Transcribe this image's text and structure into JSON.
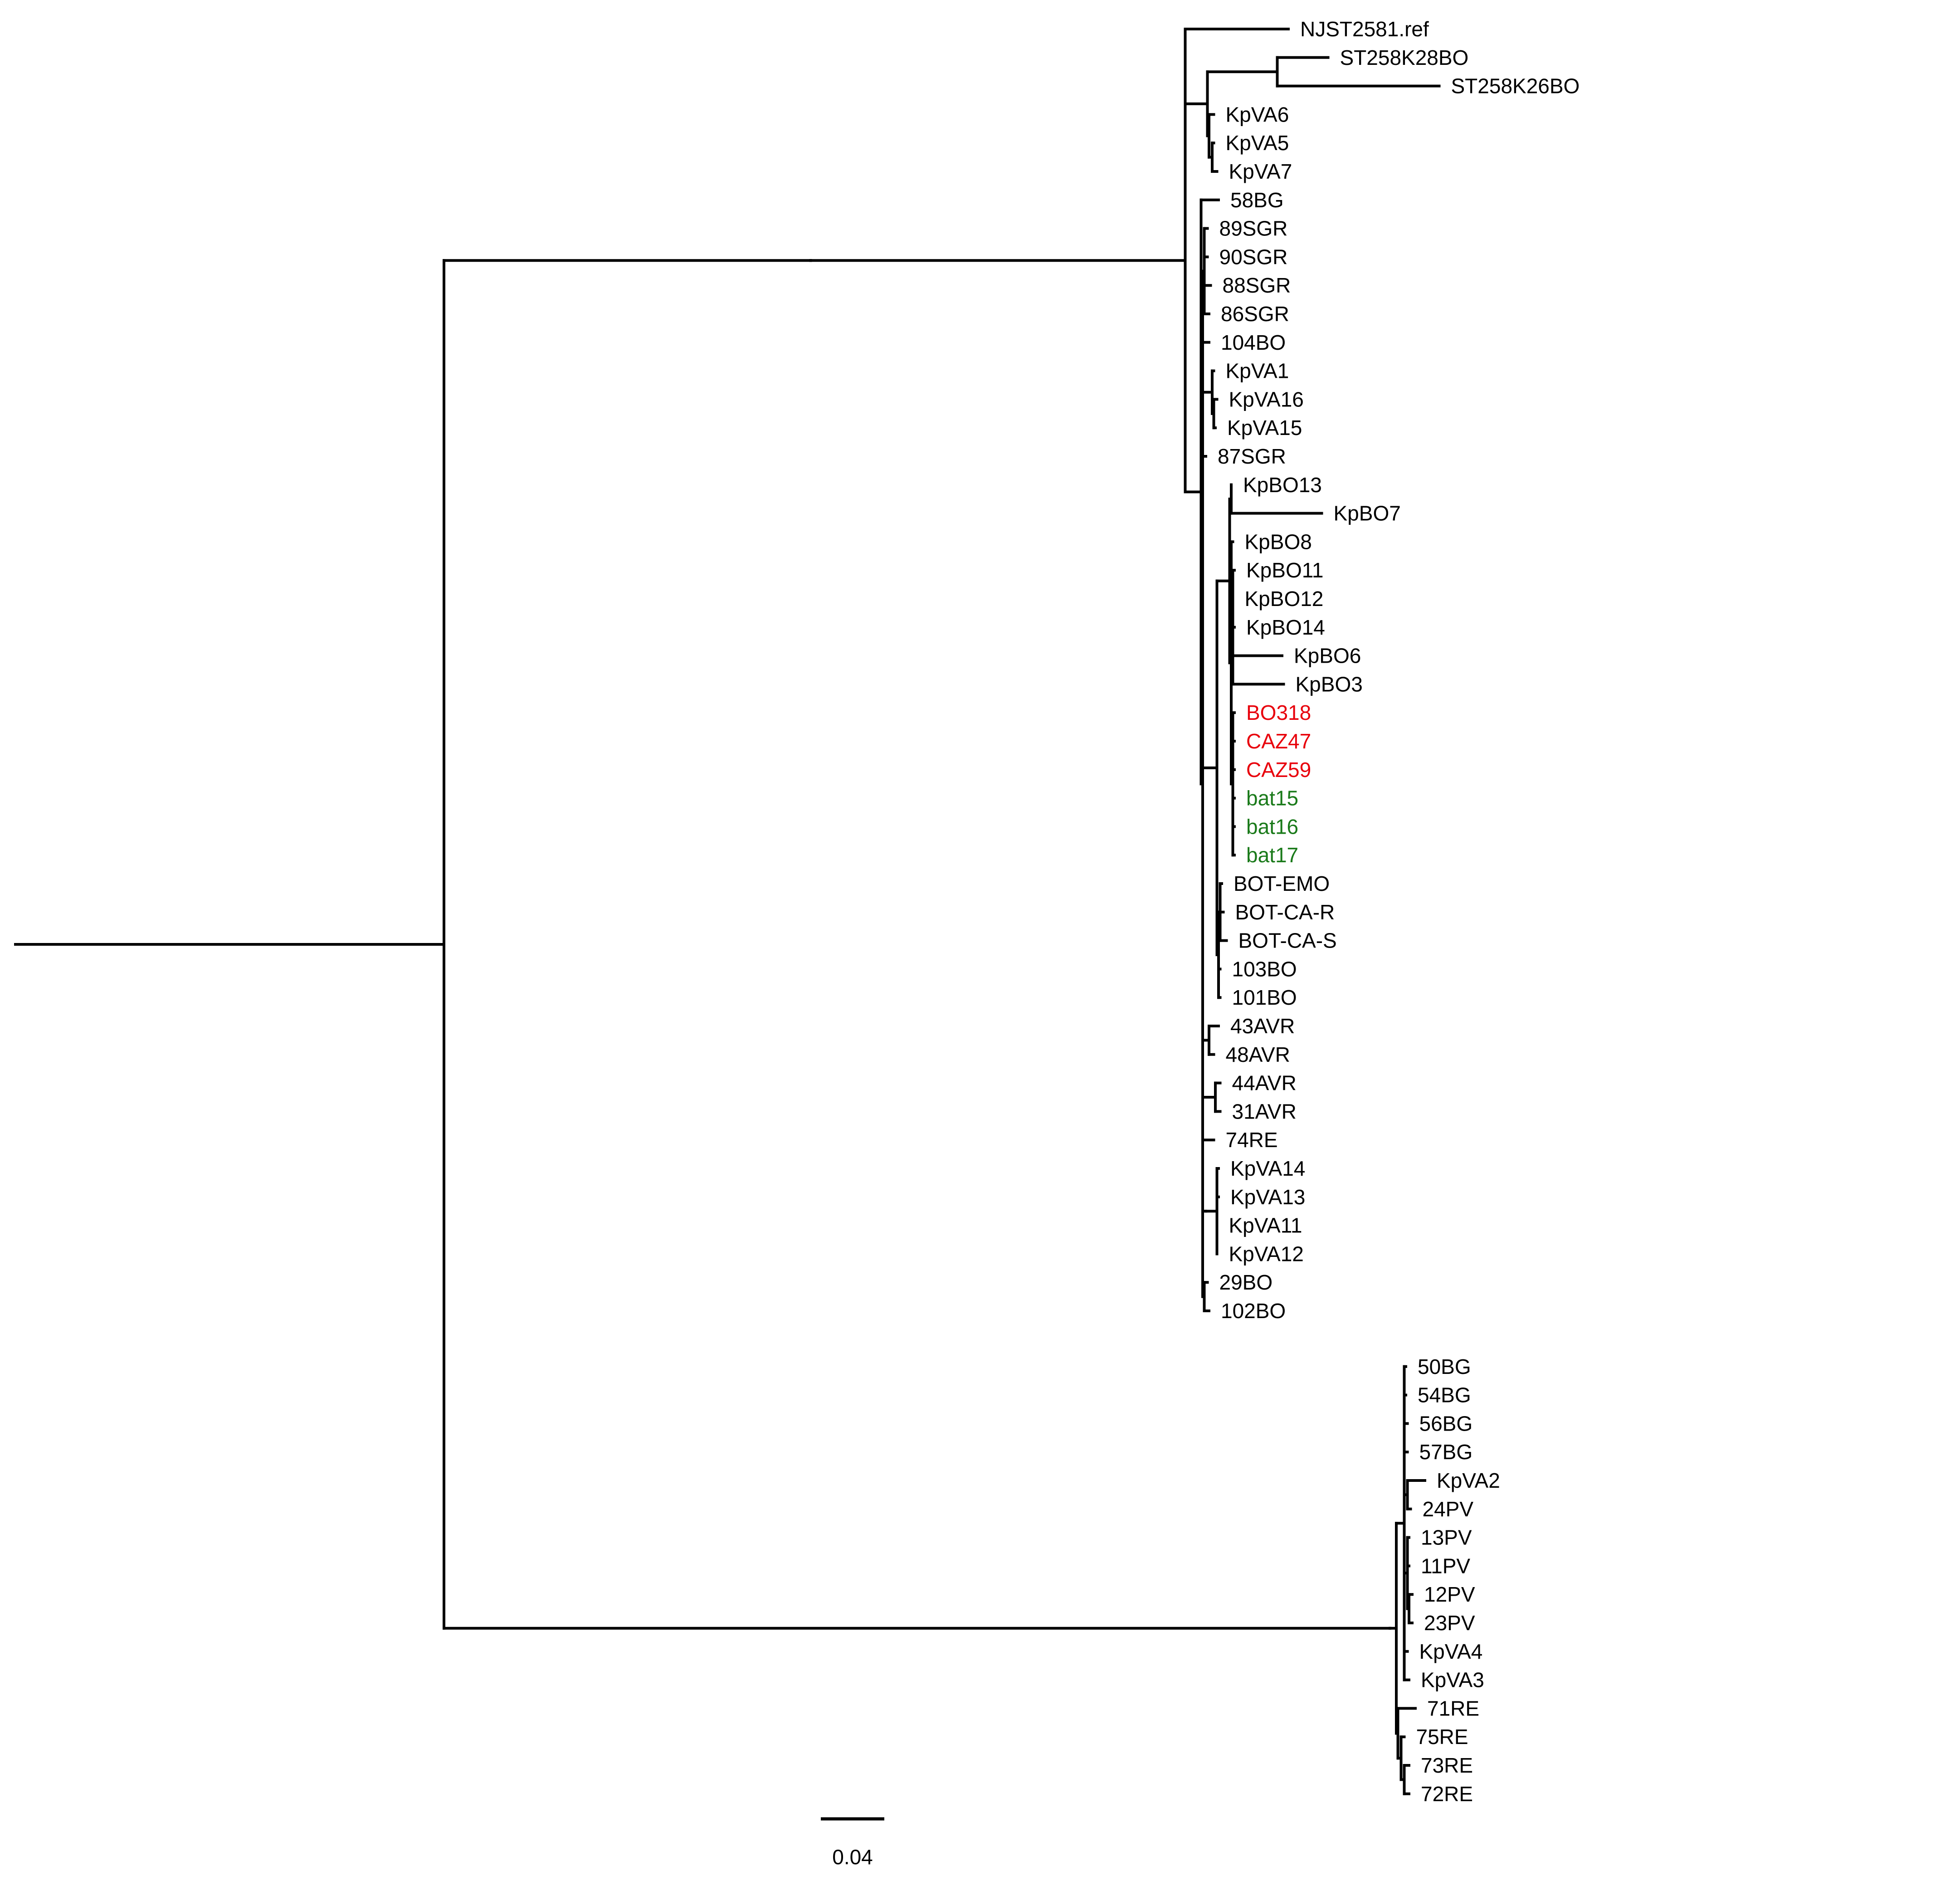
{
  "colors": {
    "branch": "#000000",
    "default_label": "#000000",
    "red": "#e8000b",
    "green": "#1a7a1a"
  },
  "scale_bar": {
    "length": 0.04,
    "label": "0.04"
  },
  "tree": {
    "name": "root",
    "len": 0,
    "children": [
      {
        "name": "",
        "len": 0.231,
        "children": [
          {
            "name": "",
            "len": 0.236,
            "children": [
              {
                "name": "NJST2581.ref",
                "len": 0.065
              },
              {
                "name": "",
                "len": 0.014,
                "children": [
                  {
                    "name": "",
                    "len": 0.044,
                    "children": [
                      {
                        "name": "ST258K28BO",
                        "len": 0.032
                      },
                      {
                        "name": "ST258K26BO",
                        "len": 0.102
                      }
                    ]
                  },
                  {
                    "name": "",
                    "len": 0.001,
                    "children": [
                      {
                        "name": "KpVA6",
                        "len": 0.003
                      },
                      {
                        "name": "",
                        "len": 0.002,
                        "children": [
                          {
                            "name": "KpVA5",
                            "len": 0.001
                          },
                          {
                            "name": "KpVA7",
                            "len": 0.003
                          }
                        ]
                      }
                    ]
                  }
                ]
              },
              {
                "name": "",
                "len": 0.01,
                "children": [
                  {
                    "name": "58BG",
                    "len": 0.011
                  },
                  {
                    "name": "",
                    "len": 0.001,
                    "children": [
                      {
                        "name": "",
                        "len": 0.001,
                        "children": [
                          {
                            "name": "89SGR",
                            "len": 0.002
                          },
                          {
                            "name": "90SGR",
                            "len": 0.002
                          },
                          {
                            "name": "88SGR",
                            "len": 0.004
                          },
                          {
                            "name": "86SGR",
                            "len": 0.003
                          }
                        ]
                      },
                      {
                        "name": "104BO",
                        "len": 0.004
                      },
                      {
                        "name": "",
                        "len": 0.006,
                        "children": [
                          {
                            "name": "KpVA1",
                            "len": 0.001
                          },
                          {
                            "name": "",
                            "len": 0.001,
                            "children": [
                              {
                                "name": "KpVA16",
                                "len": 0.002
                              },
                              {
                                "name": "KpVA15",
                                "len": 0.001
                              }
                            ]
                          }
                        ]
                      },
                      {
                        "name": "87SGR",
                        "len": 0.002
                      },
                      {
                        "name": "",
                        "len": 0.009,
                        "children": [
                          {
                            "name": "",
                            "len": 0.008,
                            "children": [
                              {
                                "name": "",
                                "len": 0.001,
                                "children": [
                                  {
                                    "name": "KpBO13",
                                    "len": 0.0
                                  },
                                  {
                                    "name": "KpBO7",
                                    "len": 0.057
                                  }
                                ]
                              },
                              {
                                "name": "",
                                "len": 0.001,
                                "children": [
                                  {
                                    "name": "KpBO8",
                                    "len": 0.001
                                  },
                                  {
                                    "name": "",
                                    "len": 0.001,
                                    "children": [
                                      {
                                        "name": "KpBO11",
                                        "len": 0.001
                                      },
                                      {
                                        "name": "KpBO12",
                                        "len": 0.0
                                      },
                                      {
                                        "name": "KpBO14",
                                        "len": 0.001
                                      },
                                      {
                                        "name": "KpBO6",
                                        "len": 0.031
                                      },
                                      {
                                        "name": "KpBO3",
                                        "len": 0.032
                                      }
                                    ]
                                  },
                                  {
                                    "name": "",
                                    "len": 0.001,
                                    "children": [
                                      {
                                        "name": "BO318",
                                        "len": 0.001,
                                        "color": "red"
                                      },
                                      {
                                        "name": "CAZ47",
                                        "len": 0.001,
                                        "color": "red"
                                      },
                                      {
                                        "name": "CAZ59",
                                        "len": 0.001,
                                        "color": "red"
                                      },
                                      {
                                        "name": "bat15",
                                        "len": 0.001,
                                        "color": "green"
                                      },
                                      {
                                        "name": "bat16",
                                        "len": 0.001,
                                        "color": "green"
                                      },
                                      {
                                        "name": "bat17",
                                        "len": 0.001,
                                        "color": "green"
                                      }
                                    ]
                                  }
                                ]
                              }
                            ]
                          },
                          {
                            "name": "",
                            "len": 0.001,
                            "children": [
                              {
                                "name": "",
                                "len": 0.001,
                                "children": [
                                  {
                                    "name": "BOT-EMO",
                                    "len": 0.001
                                  },
                                  {
                                    "name": "BOT-CA-R",
                                    "len": 0.002
                                  },
                                  {
                                    "name": "BOT-CA-S",
                                    "len": 0.004
                                  }
                                ]
                              },
                              {
                                "name": "103BO",
                                "len": 0.001
                              },
                              {
                                "name": "101BO",
                                "len": 0.001
                              }
                            ]
                          }
                        ]
                      },
                      {
                        "name": "",
                        "len": 0.004,
                        "children": [
                          {
                            "name": "43AVR",
                            "len": 0.006
                          },
                          {
                            "name": "48AVR",
                            "len": 0.003
                          }
                        ]
                      },
                      {
                        "name": "",
                        "len": 0.008,
                        "children": [
                          {
                            "name": "44AVR",
                            "len": 0.003
                          },
                          {
                            "name": "31AVR",
                            "len": 0.003
                          }
                        ]
                      },
                      {
                        "name": "74RE",
                        "len": 0.007
                      },
                      {
                        "name": "",
                        "len": 0.002,
                        "children": [
                          {
                            "name": "",
                            "len": 0.007,
                            "children": [
                              {
                                "name": "KpVA14",
                                "len": 0.001
                              },
                              {
                                "name": "KpVA13",
                                "len": 0.001
                              },
                              {
                                "name": "KpVA11",
                                "len": 0.0
                              },
                              {
                                "name": "KpVA12",
                                "len": 0.0
                              }
                            ]
                          }
                        ]
                      },
                      {
                        "name": "",
                        "len": 0.001,
                        "children": [
                          {
                            "name": "29BO",
                            "len": 0.002
                          },
                          {
                            "name": "102BO",
                            "len": 0.003
                          }
                        ]
                      }
                    ]
                  }
                ]
              }
            ]
          }
        ]
      },
      {
        "name": "",
        "len": 0.596,
        "children": [
          {
            "name": "",
            "len": 0.004,
            "children": [
              {
                "name": "",
                "len": 0.005,
                "children": [
                  {
                    "name": "50BG",
                    "len": 0.001
                  },
                  {
                    "name": "54BG",
                    "len": 0.001
                  },
                  {
                    "name": "56BG",
                    "len": 0.002
                  },
                  {
                    "name": "57BG",
                    "len": 0.002
                  },
                  {
                    "name": "",
                    "len": 0.002,
                    "children": [
                      {
                        "name": "KpVA2",
                        "len": 0.011
                      },
                      {
                        "name": "24PV",
                        "len": 0.002
                      }
                    ]
                  },
                  {
                    "name": "",
                    "len": 0.002,
                    "children": [
                      {
                        "name": "13PV",
                        "len": 0.001
                      },
                      {
                        "name": "11PV",
                        "len": 0.001
                      },
                      {
                        "name": "",
                        "len": 0.001,
                        "children": [
                          {
                            "name": "12PV",
                            "len": 0.002
                          },
                          {
                            "name": "23PV",
                            "len": 0.002
                          }
                        ]
                      }
                    ]
                  },
                  {
                    "name": "KpVA4",
                    "len": 0.002
                  },
                  {
                    "name": "KpVA3",
                    "len": 0.003
                  }
                ]
              },
              {
                "name": "",
                "len": 0.001,
                "children": [
                  {
                    "name": "71RE",
                    "len": 0.011
                  },
                  {
                    "name": "",
                    "len": 0.002,
                    "children": [
                      {
                        "name": "75RE",
                        "len": 0.002
                      },
                      {
                        "name": "",
                        "len": 0.002,
                        "children": [
                          {
                            "name": "73RE",
                            "len": 0.003
                          },
                          {
                            "name": "72RE",
                            "len": 0.003
                          }
                        ]
                      }
                    ]
                  }
                ]
              }
            ]
          }
        ]
      }
    ]
  }
}
